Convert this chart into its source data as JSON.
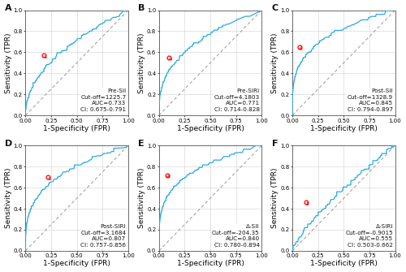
{
  "panels": [
    {
      "label": "A",
      "title": "Pre-SII",
      "cutoff": "Cut-off=1225.7",
      "auc": "AUC=0.733",
      "ci": "CI: 0.675-0.791",
      "optimal_point": [
        0.18,
        0.57
      ],
      "curve_type": "A"
    },
    {
      "label": "B",
      "title": "Pre-SIRI",
      "cutoff": "Cut-off=4.1803",
      "auc": "AUC=0.771",
      "ci": "CI: 0.714-0.828",
      "optimal_point": [
        0.1,
        0.55
      ],
      "curve_type": "B"
    },
    {
      "label": "C",
      "title": "Post-SII",
      "cutoff": "Cut-off=1328.9",
      "auc": "AUC=0.845",
      "ci": "CI: 0.794-0.897",
      "optimal_point": [
        0.07,
        0.65
      ],
      "curve_type": "C"
    },
    {
      "label": "D",
      "title": "Post-SIRI",
      "cutoff": "Cut-off=3.1684",
      "auc": "AUC=0.807",
      "ci": "CI: 0.757-0.856",
      "optimal_point": [
        0.22,
        0.7
      ],
      "curve_type": "D"
    },
    {
      "label": "E",
      "title": "Δ-SII",
      "cutoff": "Cut-off=-204.35",
      "auc": "AUC=0.840",
      "ci": "CI: 0.780-0.894",
      "optimal_point": [
        0.08,
        0.72
      ],
      "curve_type": "E"
    },
    {
      "label": "F",
      "title": "Δ-SIRI",
      "cutoff": "Cut-off=-0.9015",
      "auc": "AUC=0.555",
      "ci": "CI: 0.503-0.662",
      "optimal_point": [
        0.13,
        0.46
      ],
      "curve_type": "F"
    }
  ],
  "curve_color": "#29ABE2",
  "diag_color": "#999999",
  "point_color": "red",
  "bg_color": "#ffffff",
  "grid_color": "#d0d0d0",
  "text_color": "#111111",
  "annotation_fontsize": 5.2,
  "label_fontsize": 6.5,
  "tick_fontsize": 5.0
}
